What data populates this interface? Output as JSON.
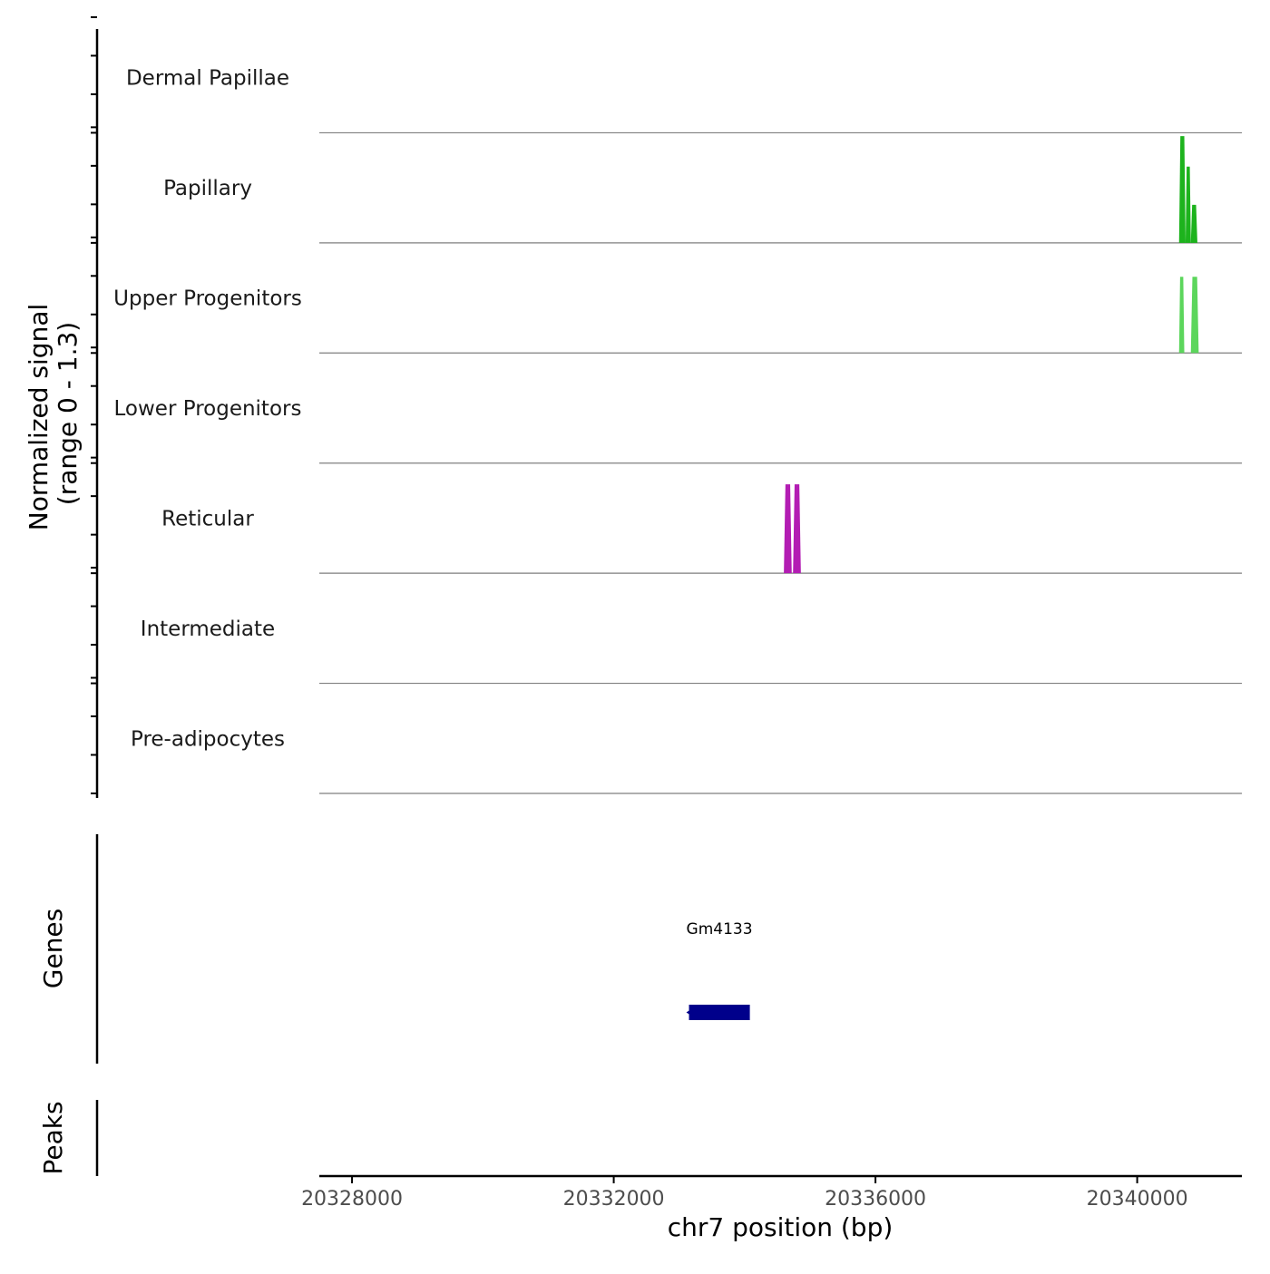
{
  "chart_data": {
    "type": "genome-coverage",
    "chromosome": "chr7",
    "xlabel": "chr7 position (bp)",
    "xlim": [
      20327500,
      20341600
    ],
    "x_ticks": [
      20328000,
      20332000,
      20336000,
      20340000
    ],
    "x_tick_labels": [
      "20328000",
      "20332000",
      "20336000",
      "20340000"
    ],
    "coverage": {
      "ylabel_line1": "Normalized signal",
      "ylabel_line2": "(range 0 - 1.3)",
      "ylim": [
        0,
        1.3
      ],
      "tracks": [
        {
          "name": "Dermal Papillae",
          "color": "#1f7a1f",
          "peaks": []
        },
        {
          "name": "Papillary",
          "color": "#1db31d",
          "peaks": [
            {
              "start": 20340640,
              "end": 20340740,
              "value": 1.26
            },
            {
              "start": 20340740,
              "end": 20340820,
              "value": 0.9
            },
            {
              "start": 20340820,
              "end": 20340920,
              "value": 0.45
            }
          ]
        },
        {
          "name": "Upper Progenitors",
          "color": "#5cd65c",
          "peaks": [
            {
              "start": 20340640,
              "end": 20340720,
              "value": 0.9
            },
            {
              "start": 20340820,
              "end": 20340940,
              "value": 0.9
            }
          ]
        },
        {
          "name": "Lower Progenitors",
          "color": "#2e8b57",
          "peaks": []
        },
        {
          "name": "Reticular",
          "color": "#b31db3",
          "peaks": [
            {
              "start": 20334600,
              "end": 20334720,
              "value": 1.05
            },
            {
              "start": 20334740,
              "end": 20334860,
              "value": 1.05
            }
          ]
        },
        {
          "name": "Intermediate",
          "color": "#8a2be2",
          "peaks": []
        },
        {
          "name": "Pre-adipocytes",
          "color": "#d2691e",
          "peaks": []
        }
      ]
    },
    "genes": {
      "ylabel": "Genes",
      "items": [
        {
          "name": "Gm4133",
          "start": 20333150,
          "end": 20334080,
          "strand": "-",
          "color": "#00008b"
        }
      ]
    },
    "peaks": {
      "ylabel": "Peaks",
      "items": []
    }
  }
}
